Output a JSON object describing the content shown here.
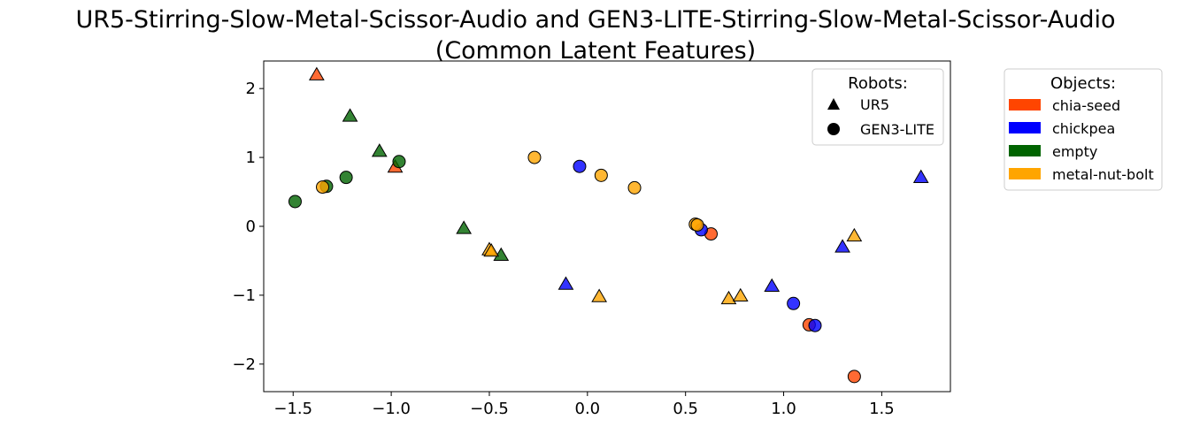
{
  "chart_data": {
    "type": "scatter",
    "title_line1": "UR5-Stirring-Slow-Metal-Scissor-Audio and GEN3-LITE-Stirring-Slow-Metal-Scissor-Audio",
    "title_line2": "(Common Latent Features)",
    "xlabel": "",
    "ylabel": "",
    "xlim": [
      -1.65,
      1.85
    ],
    "ylim": [
      -2.4,
      2.4
    ],
    "xticks": [
      -1.5,
      -1.0,
      -0.5,
      0.0,
      0.5,
      1.0,
      1.5
    ],
    "yticks": [
      -2,
      -1,
      0,
      1,
      2
    ],
    "xtick_labels": [
      "−1.5",
      "−1.0",
      "−0.5",
      "0.0",
      "0.5",
      "1.0",
      "1.5"
    ],
    "ytick_labels": [
      "−2",
      "−1",
      "0",
      "1",
      "2"
    ],
    "grid": false,
    "robot_legend": {
      "title": "Robots:",
      "placement": "top-right",
      "items": [
        {
          "label": "UR5",
          "marker": "triangle"
        },
        {
          "label": "GEN3-LITE",
          "marker": "circle"
        }
      ]
    },
    "object_legend": {
      "title": "Objects:",
      "placement": "outside-right",
      "items": [
        {
          "label": "chia-seed",
          "color": "#ff4500"
        },
        {
          "label": "chickpea",
          "color": "#0000ff"
        },
        {
          "label": "empty",
          "color": "#006400"
        },
        {
          "label": "metal-nut-bolt",
          "color": "#ffa500"
        }
      ]
    },
    "series": [
      {
        "object": "chia-seed",
        "robot": "UR5",
        "color": "#ff4500",
        "marker": "triangle",
        "points": [
          [
            -1.38,
            2.2
          ],
          [
            -0.98,
            0.86
          ]
        ]
      },
      {
        "object": "chia-seed",
        "robot": "GEN3-LITE",
        "color": "#ff4500",
        "marker": "circle",
        "points": [
          [
            0.63,
            -0.11
          ],
          [
            1.13,
            -1.43
          ],
          [
            1.36,
            -2.18
          ]
        ]
      },
      {
        "object": "chickpea",
        "robot": "UR5",
        "color": "#0000ff",
        "marker": "triangle",
        "points": [
          [
            1.7,
            0.71
          ],
          [
            1.3,
            -0.3
          ],
          [
            0.94,
            -0.87
          ],
          [
            -0.11,
            -0.84
          ]
        ]
      },
      {
        "object": "chickpea",
        "robot": "GEN3-LITE",
        "color": "#0000ff",
        "marker": "circle",
        "points": [
          [
            -0.04,
            0.87
          ],
          [
            0.58,
            -0.05
          ],
          [
            1.05,
            -1.12
          ],
          [
            1.16,
            -1.44
          ]
        ]
      },
      {
        "object": "empty",
        "robot": "UR5",
        "color": "#006400",
        "marker": "triangle",
        "points": [
          [
            -1.21,
            1.6
          ],
          [
            -1.06,
            1.09
          ],
          [
            -0.63,
            -0.03
          ],
          [
            -0.44,
            -0.42
          ]
        ]
      },
      {
        "object": "empty",
        "robot": "GEN3-LITE",
        "color": "#006400",
        "marker": "circle",
        "points": [
          [
            -1.49,
            0.36
          ],
          [
            -1.33,
            0.58
          ],
          [
            -1.23,
            0.71
          ],
          [
            -0.96,
            0.94
          ]
        ]
      },
      {
        "object": "metal-nut-bolt",
        "robot": "UR5",
        "color": "#ffa500",
        "marker": "triangle",
        "points": [
          [
            -0.5,
            -0.34
          ],
          [
            -0.49,
            -0.36
          ],
          [
            0.06,
            -1.02
          ],
          [
            0.72,
            -1.05
          ],
          [
            0.78,
            -1.01
          ],
          [
            1.36,
            -0.14
          ]
        ]
      },
      {
        "object": "metal-nut-bolt",
        "robot": "GEN3-LITE",
        "color": "#ffa500",
        "marker": "circle",
        "points": [
          [
            -1.35,
            0.57
          ],
          [
            -0.27,
            1.0
          ],
          [
            0.07,
            0.74
          ],
          [
            0.24,
            0.56
          ],
          [
            0.55,
            0.03
          ],
          [
            0.56,
            0.02
          ]
        ]
      }
    ]
  }
}
